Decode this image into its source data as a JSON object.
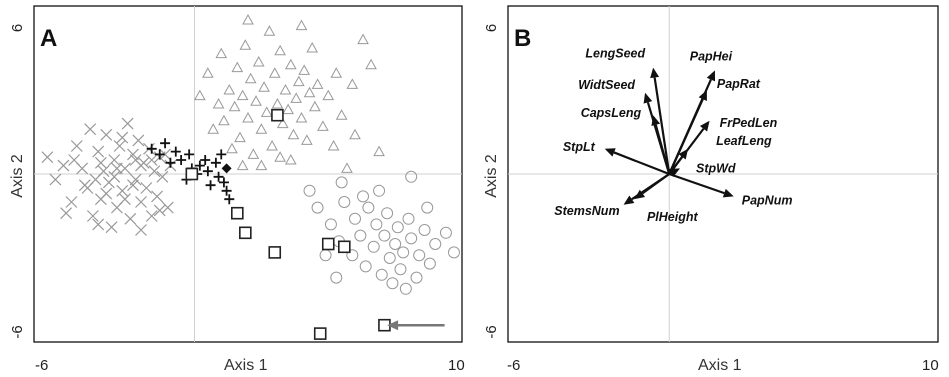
{
  "chart_data": [
    {
      "type": "scatter",
      "panel_label": "A",
      "xlabel": "Axis 1",
      "ylabel": "Axis 2",
      "x_tick_labels": [
        "-6",
        "10"
      ],
      "y_tick_labels": [
        "6",
        "-6"
      ],
      "xlim": [
        -6,
        10
      ],
      "ylim": [
        -6,
        6
      ],
      "reference_lines": {
        "x": 0,
        "y": 0
      },
      "grid": false,
      "arrow_annotation": {
        "x": 9.2,
        "y": -5.4,
        "points_to": [
          7.2,
          -5.4
        ]
      },
      "series": [
        {
          "marker": "cross-x",
          "color": "#999999",
          "points": [
            [
              -5.2,
              -0.2
            ],
            [
              -5.5,
              0.6
            ],
            [
              -4.8,
              -1.4
            ],
            [
              -4.6,
              -1.0
            ],
            [
              -4.4,
              1.0
            ],
            [
              -4.2,
              0.2
            ],
            [
              -4.0,
              -0.5
            ],
            [
              -3.9,
              1.6
            ],
            [
              -3.8,
              -1.5
            ],
            [
              -3.6,
              0.8
            ],
            [
              -3.5,
              -0.9
            ],
            [
              -3.4,
              0.1
            ],
            [
              -3.3,
              1.4
            ],
            [
              -3.2,
              -0.3
            ],
            [
              -3.1,
              -1.9
            ],
            [
              -3.0,
              0.5
            ],
            [
              -2.9,
              -1.2
            ],
            [
              -2.8,
              1.0
            ],
            [
              -2.7,
              -0.6
            ],
            [
              -2.6,
              0.2
            ],
            [
              -2.5,
              1.8
            ],
            [
              -2.4,
              -1.6
            ],
            [
              -2.3,
              0.7
            ],
            [
              -2.2,
              -0.2
            ],
            [
              -2.1,
              1.2
            ],
            [
              -2.0,
              -1.0
            ],
            [
              -1.9,
              0.4
            ],
            [
              -1.8,
              -0.5
            ],
            [
              -1.7,
              0.9
            ],
            [
              -1.6,
              -1.5
            ],
            [
              -1.5,
              0.1
            ],
            [
              -1.4,
              -0.8
            ],
            [
              -1.3,
              0.6
            ],
            [
              -1.2,
              -0.1
            ],
            [
              -1.0,
              -1.2
            ],
            [
              -0.9,
              0.3
            ],
            [
              -3.7,
              -0.2
            ],
            [
              -3.3,
              -0.7
            ],
            [
              -2.9,
              0.2
            ],
            [
              -2.6,
              -0.9
            ],
            [
              -2.3,
              -0.4
            ],
            [
              -2.0,
              0.3
            ],
            [
              -1.6,
              0.5
            ],
            [
              -4.1,
              -0.4
            ],
            [
              -3.0,
              -0.1
            ],
            [
              -2.2,
              0.5
            ],
            [
              -2.7,
              1.3
            ],
            [
              -3.5,
              0.4
            ],
            [
              -1.3,
              -1.3
            ],
            [
              -4.5,
              0.5
            ],
            [
              -2.0,
              -2.0
            ],
            [
              -3.6,
              -1.8
            ],
            [
              -1.1,
              0.7
            ],
            [
              -4.9,
              0.3
            ]
          ]
        },
        {
          "marker": "plus",
          "color": "#111111",
          "points": [
            [
              -1.6,
              0.9
            ],
            [
              -1.3,
              0.7
            ],
            [
              -1.1,
              1.1
            ],
            [
              -0.9,
              0.4
            ],
            [
              -0.7,
              0.8
            ],
            [
              -0.5,
              0.5
            ],
            [
              -0.3,
              -0.2
            ],
            [
              -0.2,
              0.7
            ],
            [
              -0.1,
              0.2
            ],
            [
              0.2,
              0.3
            ],
            [
              0.4,
              0.5
            ],
            [
              0.5,
              0.1
            ],
            [
              0.6,
              -0.4
            ],
            [
              0.8,
              0.4
            ],
            [
              0.9,
              -0.1
            ],
            [
              1.0,
              0.7
            ],
            [
              1.1,
              -0.3
            ],
            [
              1.2,
              -0.6
            ],
            [
              1.3,
              -0.9
            ],
            [
              0.1,
              0.0
            ]
          ]
        },
        {
          "marker": "triangle",
          "color": "#999999",
          "points": [
            [
              0.2,
              2.8
            ],
            [
              0.5,
              3.6
            ],
            [
              0.7,
              1.6
            ],
            [
              0.9,
              2.5
            ],
            [
              1.0,
              4.3
            ],
            [
              1.1,
              1.9
            ],
            [
              1.3,
              3.0
            ],
            [
              1.4,
              0.9
            ],
            [
              1.5,
              2.4
            ],
            [
              1.6,
              3.8
            ],
            [
              1.7,
              1.3
            ],
            [
              1.8,
              2.8
            ],
            [
              1.9,
              4.6
            ],
            [
              2.0,
              2.0
            ],
            [
              2.1,
              3.4
            ],
            [
              2.2,
              0.7
            ],
            [
              2.3,
              2.6
            ],
            [
              2.4,
              4.0
            ],
            [
              2.5,
              1.6
            ],
            [
              2.6,
              3.1
            ],
            [
              2.7,
              2.2
            ],
            [
              2.8,
              5.1
            ],
            [
              2.9,
              1.0
            ],
            [
              3.0,
              3.6
            ],
            [
              3.1,
              2.5
            ],
            [
              3.2,
              4.4
            ],
            [
              3.3,
              1.8
            ],
            [
              3.4,
              3.0
            ],
            [
              3.5,
              2.3
            ],
            [
              3.6,
              3.9
            ],
            [
              3.7,
              1.4
            ],
            [
              3.8,
              2.7
            ],
            [
              3.9,
              3.3
            ],
            [
              4.0,
              2.0
            ],
            [
              4.1,
              3.7
            ],
            [
              4.2,
              1.2
            ],
            [
              4.3,
              2.9
            ],
            [
              4.4,
              4.5
            ],
            [
              4.5,
              2.4
            ],
            [
              4.6,
              3.2
            ],
            [
              4.8,
              1.7
            ],
            [
              5.0,
              2.8
            ],
            [
              5.2,
              1.0
            ],
            [
              5.3,
              3.6
            ],
            [
              5.5,
              2.1
            ],
            [
              5.7,
              0.2
            ],
            [
              6.0,
              1.4
            ],
            [
              6.3,
              4.8
            ],
            [
              6.6,
              3.9
            ],
            [
              6.9,
              0.8
            ],
            [
              2.5,
              0.3
            ],
            [
              3.2,
              0.6
            ],
            [
              1.8,
              0.3
            ],
            [
              3.6,
              0.5
            ],
            [
              2.0,
              5.5
            ],
            [
              4.0,
              5.3
            ],
            [
              5.9,
              3.2
            ]
          ]
        },
        {
          "marker": "circle",
          "color": "#999999",
          "points": [
            [
              4.3,
              -0.6
            ],
            [
              4.6,
              -1.2
            ],
            [
              5.1,
              -1.8
            ],
            [
              5.4,
              -2.4
            ],
            [
              5.6,
              -1.0
            ],
            [
              5.9,
              -2.9
            ],
            [
              6.0,
              -1.6
            ],
            [
              6.2,
              -2.2
            ],
            [
              6.4,
              -3.3
            ],
            [
              6.5,
              -1.2
            ],
            [
              6.7,
              -2.6
            ],
            [
              6.8,
              -1.8
            ],
            [
              7.0,
              -3.6
            ],
            [
              7.1,
              -2.2
            ],
            [
              7.2,
              -1.4
            ],
            [
              7.3,
              -3.0
            ],
            [
              7.5,
              -2.5
            ],
            [
              7.6,
              -1.9
            ],
            [
              7.7,
              -3.4
            ],
            [
              7.8,
              -2.8
            ],
            [
              8.0,
              -1.6
            ],
            [
              8.1,
              -2.3
            ],
            [
              8.3,
              -3.7
            ],
            [
              8.4,
              -2.9
            ],
            [
              8.6,
              -2.0
            ],
            [
              8.8,
              -3.2
            ],
            [
              9.0,
              -2.5
            ],
            [
              5.3,
              -3.7
            ],
            [
              6.3,
              -0.8
            ],
            [
              6.9,
              -0.6
            ],
            [
              7.4,
              -3.9
            ],
            [
              7.9,
              -4.1
            ],
            [
              8.7,
              -1.2
            ],
            [
              9.4,
              -2.1
            ],
            [
              9.7,
              -2.8
            ],
            [
              8.1,
              -0.1
            ],
            [
              5.5,
              -0.3
            ],
            [
              4.9,
              -2.9
            ]
          ]
        },
        {
          "marker": "square",
          "color": "#222222",
          "points": [
            [
              3.1,
              2.1
            ],
            [
              -0.1,
              0.0
            ],
            [
              1.6,
              -1.4
            ],
            [
              1.9,
              -2.1
            ],
            [
              3.0,
              -2.8
            ],
            [
              5.0,
              -2.5
            ],
            [
              5.6,
              -2.6
            ],
            [
              4.7,
              -5.7
            ],
            [
              7.1,
              -5.4
            ]
          ]
        },
        {
          "marker": "diamond",
          "color": "#111111",
          "points": [
            [
              1.2,
              0.2
            ]
          ]
        }
      ]
    },
    {
      "type": "biplot",
      "panel_label": "B",
      "xlabel": "Axis 1",
      "ylabel": "Axis 2",
      "x_tick_labels": [
        "-6",
        "10"
      ],
      "y_tick_labels": [
        "6",
        "-6"
      ],
      "xlim": [
        -6,
        10
      ],
      "ylim": [
        -6,
        6
      ],
      "reference_lines": {
        "x": 0,
        "y": 0
      },
      "grid": false,
      "vectors": [
        {
          "name": "LengSeed",
          "x": -0.6,
          "y": 3.8
        },
        {
          "name": "WidtSeed",
          "x": -0.9,
          "y": 2.9
        },
        {
          "name": "CapsLeng",
          "x": -0.6,
          "y": 2.1
        },
        {
          "name": "PapHei",
          "x": 1.7,
          "y": 3.7
        },
        {
          "name": "PapRat",
          "x": 1.4,
          "y": 3.0
        },
        {
          "name": "FrPedLen",
          "x": 1.5,
          "y": 1.9
        },
        {
          "name": "LeafLeng",
          "x": 0.7,
          "y": 0.9
        },
        {
          "name": "StpWd",
          "x": 0.4,
          "y": 0.2
        },
        {
          "name": "StpLt",
          "x": -2.4,
          "y": 0.9
        },
        {
          "name": "StemsNum",
          "x": -1.7,
          "y": -1.1
        },
        {
          "name": "PlHeight",
          "x": -1.3,
          "y": -0.9
        },
        {
          "name": "PapNum",
          "x": 2.4,
          "y": -0.8
        }
      ]
    }
  ]
}
